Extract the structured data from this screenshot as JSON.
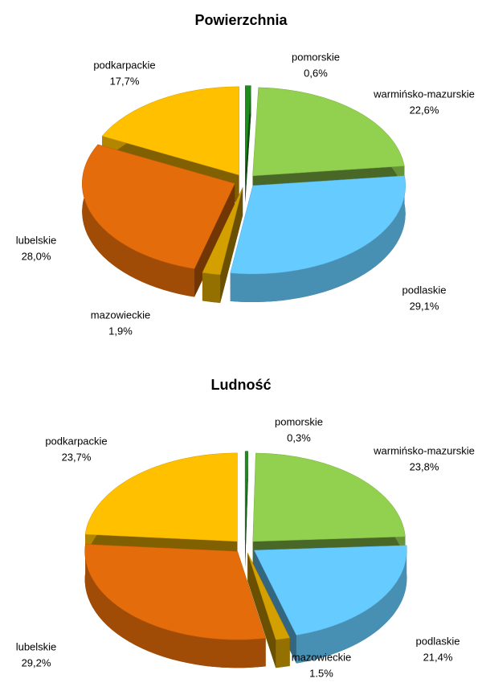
{
  "chart_data": [
    {
      "type": "pie",
      "title": "Powierzchnia",
      "categories": [
        "pomorskie",
        "warmińsko-mazurskie",
        "podlaskie",
        "mazowieckie",
        "lubelskie",
        "podkarpackie"
      ],
      "values": [
        0.6,
        22.6,
        29.1,
        1.9,
        28.0,
        17.7
      ],
      "value_labels": [
        "0,6%",
        "22,6%",
        "29,1%",
        "1,9%",
        "28,0%",
        "17,7%"
      ],
      "colors": [
        "#1e8c1e",
        "#92d050",
        "#66ccff",
        "#d4a000",
        "#e46c0a",
        "#ffc000"
      ]
    },
    {
      "type": "pie",
      "title": "Ludność",
      "categories": [
        "pomorskie",
        "warmińsko-mazurskie",
        "podlaskie",
        "mazowieckie",
        "lubelskie",
        "podkarpackie"
      ],
      "values": [
        0.3,
        23.8,
        21.4,
        1.5,
        29.2,
        23.7
      ],
      "value_labels": [
        "0,3%",
        "23,8%",
        "21,4%",
        "1.5%",
        "29,2%",
        "23,7%"
      ],
      "colors": [
        "#1e8c1e",
        "#92d050",
        "#66ccff",
        "#d4a000",
        "#e46c0a",
        "#ffc000"
      ]
    }
  ]
}
